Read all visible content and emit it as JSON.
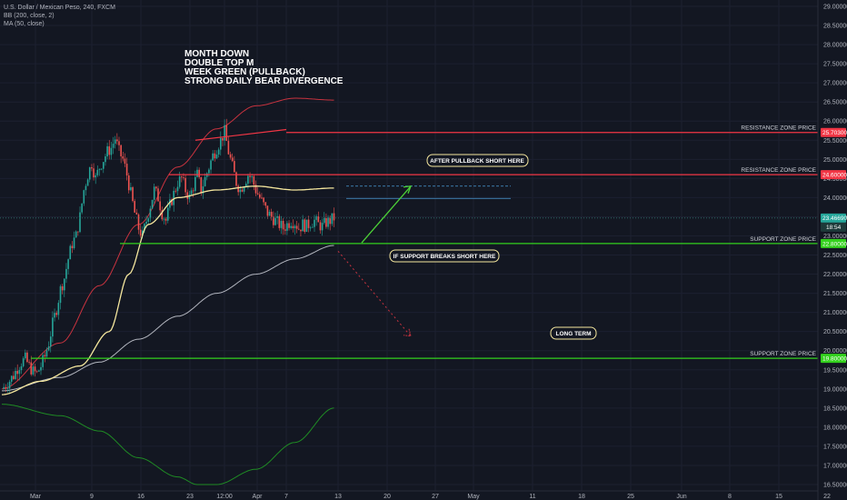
{
  "legend": [
    "U.S. Dollar / Mexican Peso, 240, FXCM",
    "BB (200, close, 2)",
    "MA (50, close)"
  ],
  "annotation_lines": [
    "MONTH DOWN",
    "DOUBLE TOP M",
    "WEEK GREEN (PULLBACK)",
    "STRONG DAILY BEAR DIVERGENCE"
  ],
  "callouts": {
    "pullback": "AFTER PULLBACK SHORT HERE",
    "support_break": "IF SUPPORT BREAKS SHORT HERE",
    "long_term": "LONG TERM"
  },
  "colors": {
    "background": "#131722",
    "resistance": "#f23645",
    "support": "#33d11d",
    "ma": "#f5e79e",
    "bb_upper": "#c8333f",
    "bb_basis": "#b2b5be",
    "bb_lower": "#1f8b24",
    "up_candle": "#26a69a",
    "down_candle": "#ef5350",
    "current_price": "#26a69a",
    "arrow_up": "#4cd137",
    "arrow_down": "#c8333f"
  },
  "chart_data": {
    "type": "candlestick",
    "symbol": "U.S. Dollar / Mexican Peso",
    "timeframe": "240",
    "y_axis": {
      "min": 16.4,
      "max": 29.1,
      "ticks": [
        "16.50000",
        "17.00000",
        "17.50000",
        "18.00000",
        "18.50000",
        "19.00000",
        "19.50000",
        "20.00000",
        "20.50000",
        "21.00000",
        "21.50000",
        "22.00000",
        "22.50000",
        "23.00000",
        "23.50000",
        "24.00000",
        "24.50000",
        "25.00000",
        "25.50000",
        "26.00000",
        "26.50000",
        "27.00000",
        "27.50000",
        "28.00000",
        "28.50000",
        "29.00000"
      ]
    },
    "x_axis": {
      "ticks": [
        "Mar",
        "9",
        "16",
        "23",
        "12:00",
        "Apr",
        "7",
        "13",
        "20",
        "27",
        "May",
        "11",
        "18",
        "25",
        "Jun",
        "8",
        "15",
        "22"
      ]
    },
    "price_path": {
      "x_index": [
        0,
        2,
        4,
        6,
        8,
        10,
        12,
        14,
        16,
        18,
        20,
        22,
        24,
        26,
        28,
        30,
        32,
        34,
        36,
        38,
        40,
        42,
        44,
        46,
        48,
        50,
        52,
        54,
        56,
        58,
        60,
        62,
        64,
        66,
        68,
        70,
        72,
        74,
        76,
        78,
        80,
        82,
        84,
        86,
        88,
        90,
        92,
        94,
        96,
        98,
        100,
        102,
        104,
        106,
        108,
        110,
        112,
        114,
        116,
        118,
        120,
        122,
        124,
        126,
        128,
        130,
        132,
        134,
        136,
        138,
        140,
        142,
        144,
        146,
        148,
        150,
        152,
        154,
        156,
        158,
        160,
        162,
        164,
        166,
        168,
        170
      ],
      "close": [
        19.0,
        19.1,
        19.22,
        19.35,
        19.55,
        19.7,
        19.78,
        19.6,
        19.45,
        19.4,
        19.6,
        19.85,
        20.2,
        20.7,
        21.1,
        21.6,
        21.9,
        22.4,
        22.8,
        23.0,
        23.5,
        24.2,
        24.6,
        24.9,
        24.5,
        24.8,
        25.0,
        25.2,
        25.3,
        25.55,
        25.2,
        25.0,
        24.6,
        24.1,
        23.6,
        23.2,
        23.0,
        23.4,
        23.8,
        24.2,
        24.0,
        23.6,
        23.4,
        23.8,
        24.1,
        24.4,
        24.5,
        24.2,
        24.0,
        24.3,
        24.6,
        24.2,
        24.5,
        24.8,
        25.1,
        25.3,
        25.5,
        25.72,
        25.2,
        24.8,
        24.4,
        24.2,
        24.4,
        24.6,
        24.5,
        24.2,
        24.0,
        23.8,
        23.6,
        23.5,
        23.4,
        23.3,
        23.2,
        23.3,
        23.4,
        23.35,
        23.2,
        23.3,
        23.25,
        23.35,
        23.4,
        23.3,
        23.25,
        23.35,
        23.4,
        23.47
      ]
    },
    "series": [
      {
        "name": "MA (50, close)",
        "x_index": [
          0,
          20,
          40,
          55,
          65,
          75,
          90,
          110,
          130,
          150,
          170
        ],
        "values": [
          18.85,
          19.2,
          19.6,
          20.5,
          22.0,
          23.3,
          24.0,
          24.2,
          24.3,
          24.2,
          24.25
        ]
      },
      {
        "name": "BB upper",
        "x_index": [
          0,
          30,
          50,
          70,
          90,
          110,
          130,
          150,
          170
        ],
        "values": [
          19.0,
          20.2,
          21.7,
          23.3,
          24.8,
          25.8,
          26.4,
          26.6,
          26.55
        ]
      },
      {
        "name": "BB basis",
        "x_index": [
          0,
          30,
          50,
          70,
          90,
          110,
          130,
          150,
          170
        ],
        "values": [
          18.95,
          19.3,
          19.7,
          20.3,
          20.9,
          21.5,
          22.0,
          22.4,
          22.75
        ]
      },
      {
        "name": "BB lower",
        "x_index": [
          0,
          30,
          50,
          70,
          90,
          100,
          110,
          130,
          150,
          170
        ],
        "values": [
          18.6,
          18.3,
          17.9,
          17.2,
          16.7,
          16.5,
          16.5,
          16.9,
          17.6,
          18.5
        ]
      }
    ],
    "price_tags": [
      {
        "value": 25.703,
        "label": "25.70300",
        "kind": "resistance"
      },
      {
        "value": 24.6,
        "label": "24.60000",
        "kind": "resistance"
      },
      {
        "value": 23.4669,
        "label": "23.46690",
        "kind": "current"
      },
      {
        "value": 22.8,
        "label": "22.80000",
        "kind": "support"
      },
      {
        "value": 19.8,
        "label": "19.80000",
        "kind": "support"
      }
    ],
    "countdown": "18:54",
    "zones": [
      {
        "value": 25.703,
        "label": "RESISTANCE ZONE PRICE",
        "kind": "resistance"
      },
      {
        "value": 24.6,
        "label": "RESISTANCE ZONE PRICE",
        "kind": "resistance"
      },
      {
        "value": 22.8,
        "label": "SUPPORT ZONE PRICE",
        "kind": "support"
      },
      {
        "value": 19.8,
        "label": "SUPPORT ZONE PRICE",
        "kind": "support"
      }
    ],
    "projection": {
      "pullback_target": 24.3,
      "pullback_lower": 23.98,
      "breakdown_target": 20.38
    }
  }
}
